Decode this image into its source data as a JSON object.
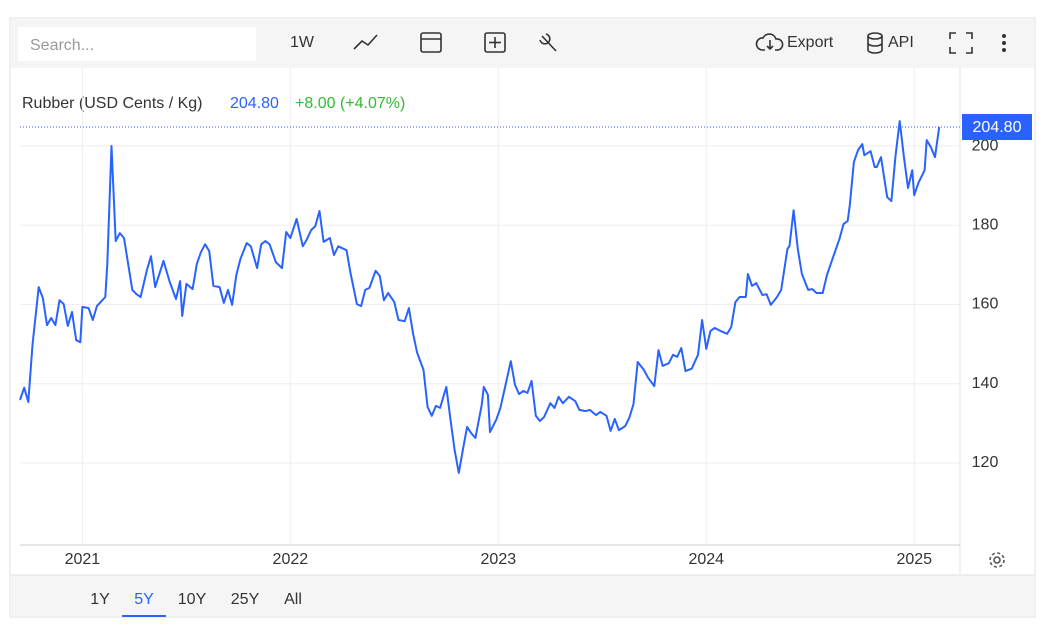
{
  "toolbar": {
    "search_placeholder": "Search...",
    "interval": "1W",
    "export": "Export",
    "api": "API"
  },
  "ranges": {
    "items": [
      "1Y",
      "5Y",
      "10Y",
      "25Y",
      "All"
    ],
    "active": 1
  },
  "chart_data": {
    "type": "line",
    "title": "Rubber (USD Cents / Kg)",
    "last": {
      "value": 204.8,
      "label": "204.80"
    },
    "change": "+8.00 (+4.07%)",
    "color": "#2962ff",
    "grid": true,
    "xlim": [
      2020.7,
      2025.22
    ],
    "xticks": [
      2021,
      2022,
      2023,
      2024,
      2025
    ],
    "ylim": [
      99.3,
      219.7
    ],
    "yticks": [
      120,
      140,
      160,
      180,
      200
    ],
    "x": [
      2020.7,
      2020.72,
      2020.74,
      2020.76,
      2020.79,
      2020.81,
      2020.83,
      2020.85,
      2020.87,
      2020.89,
      2020.91,
      2020.93,
      2020.95,
      2020.97,
      2020.99,
      2021.0,
      2021.03,
      2021.05,
      2021.07,
      2021.11,
      2021.12,
      2021.14,
      2021.16,
      2021.18,
      2021.2,
      2021.24,
      2021.26,
      2021.28,
      2021.31,
      2021.33,
      2021.35,
      2021.39,
      2021.42,
      2021.45,
      2021.47,
      2021.48,
      2021.5,
      2021.53,
      2021.55,
      2021.57,
      2021.59,
      2021.61,
      2021.63,
      2021.66,
      2021.68,
      2021.7,
      2021.72,
      2021.74,
      2021.76,
      2021.79,
      2021.81,
      2021.84,
      2021.86,
      2021.88,
      2021.9,
      2021.93,
      2021.96,
      2021.98,
      2022.0,
      2022.03,
      2022.06,
      2022.08,
      2022.1,
      2022.12,
      2022.14,
      2022.16,
      2022.19,
      2022.21,
      2022.23,
      2022.27,
      2022.29,
      2022.32,
      2022.34,
      2022.36,
      2022.38,
      2022.41,
      2022.43,
      2022.45,
      2022.47,
      2022.5,
      2022.52,
      2022.55,
      2022.57,
      2022.59,
      2022.61,
      2022.64,
      2022.66,
      2022.68,
      2022.7,
      2022.72,
      2022.75,
      2022.77,
      2022.79,
      2022.81,
      2022.83,
      2022.85,
      2022.87,
      2022.89,
      2022.92,
      2022.93,
      2022.95,
      2022.96,
      2022.99,
      2023.01,
      2023.04,
      2023.06,
      2023.08,
      2023.1,
      2023.12,
      2023.14,
      2023.16,
      2023.18,
      2023.2,
      2023.22,
      2023.25,
      2023.27,
      2023.29,
      2023.31,
      2023.34,
      2023.37,
      2023.39,
      2023.42,
      2023.44,
      2023.47,
      2023.49,
      2023.52,
      2023.54,
      2023.56,
      2023.58,
      2023.61,
      2023.63,
      2023.65,
      2023.67,
      2023.7,
      2023.72,
      2023.75,
      2023.77,
      2023.79,
      2023.82,
      2023.84,
      2023.86,
      2023.88,
      2023.9,
      2023.93,
      2023.96,
      2023.98,
      2024.0,
      2024.02,
      2024.04,
      2024.07,
      2024.1,
      2024.12,
      2024.14,
      2024.16,
      2024.19,
      2024.2,
      2024.22,
      2024.24,
      2024.27,
      2024.29,
      2024.31,
      2024.34,
      2024.36,
      2024.39,
      2024.4,
      2024.42,
      2024.44,
      2024.46,
      2024.49,
      2024.51,
      2024.53,
      2024.56,
      2024.58,
      2024.6,
      2024.64,
      2024.66,
      2024.68,
      2024.69,
      2024.71,
      2024.73,
      2024.75,
      2024.76,
      2024.79,
      2024.81,
      2024.82,
      2024.84,
      2024.87,
      2024.89,
      2024.91,
      2024.93,
      2024.95,
      2024.97,
      2024.99,
      2025.0,
      2025.02,
      2025.05,
      2025.06,
      2025.08,
      2025.1,
      2025.12
    ],
    "values": [
      135.9,
      139,
      135.4,
      149.8,
      164.4,
      161.6,
      154.8,
      156.6,
      154.8,
      161.1,
      160.1,
      154.6,
      158.1,
      151,
      150.5,
      159.4,
      159.1,
      156.1,
      159.6,
      161.9,
      170.2,
      200,
      176,
      178,
      176.8,
      163.7,
      162.6,
      161.9,
      168.7,
      172.2,
      164.4,
      171,
      165.7,
      161.4,
      165.9,
      157.1,
      165.2,
      163.9,
      170.2,
      173.2,
      175.2,
      173.5,
      164.7,
      164.4,
      160.4,
      163.7,
      159.9,
      167.4,
      171.5,
      175.5,
      174.7,
      169.2,
      175.2,
      176,
      175.2,
      170.7,
      169.2,
      178.3,
      176.8,
      181.6,
      174.7,
      176.5,
      178.8,
      179.8,
      183.6,
      175.8,
      176.8,
      172.5,
      174.7,
      173.7,
      167.7,
      160.1,
      159.6,
      163.7,
      164.2,
      168.5,
      167.2,
      161.1,
      162.9,
      160.6,
      156.1,
      155.8,
      159.1,
      152.6,
      147.8,
      143.5,
      134.1,
      131.9,
      134.4,
      133.9,
      139.2,
      130.9,
      123.3,
      117.5,
      123.5,
      129.1,
      127.5,
      126.3,
      134.6,
      139.2,
      137.2,
      127.8,
      130.9,
      133.9,
      140.9,
      145.7,
      139.7,
      137.4,
      138.2,
      137.7,
      140.7,
      131.9,
      130.6,
      131.6,
      135.1,
      133.9,
      136.7,
      135.1,
      136.7,
      135.6,
      133.4,
      133.1,
      133.4,
      132.1,
      132.9,
      131.9,
      128.1,
      131.1,
      128.3,
      129.3,
      131.4,
      134.9,
      145.5,
      143.5,
      141.5,
      139.4,
      148.5,
      144.5,
      145.2,
      147.3,
      146.8,
      149,
      143.2,
      143.8,
      147.3,
      156.1,
      148.8,
      153.3,
      154.1,
      153.3,
      152.6,
      154.3,
      160.6,
      161.9,
      161.9,
      167.7,
      164.7,
      165.4,
      162.4,
      162.6,
      159.9,
      161.9,
      163.7,
      174,
      174.8,
      183.8,
      174,
      167.7,
      163.7,
      163.9,
      162.9,
      162.9,
      167.4,
      170.5,
      176.5,
      180.3,
      181.1,
      185.1,
      196,
      199,
      200.5,
      197.7,
      198.7,
      194.7,
      194.7,
      197.2,
      187.1,
      186.1,
      197.5,
      206.3,
      197.5,
      189.4,
      193.9,
      187.6,
      190.7,
      193.9,
      201.5,
      199.7,
      197.2,
      204.8
    ]
  }
}
